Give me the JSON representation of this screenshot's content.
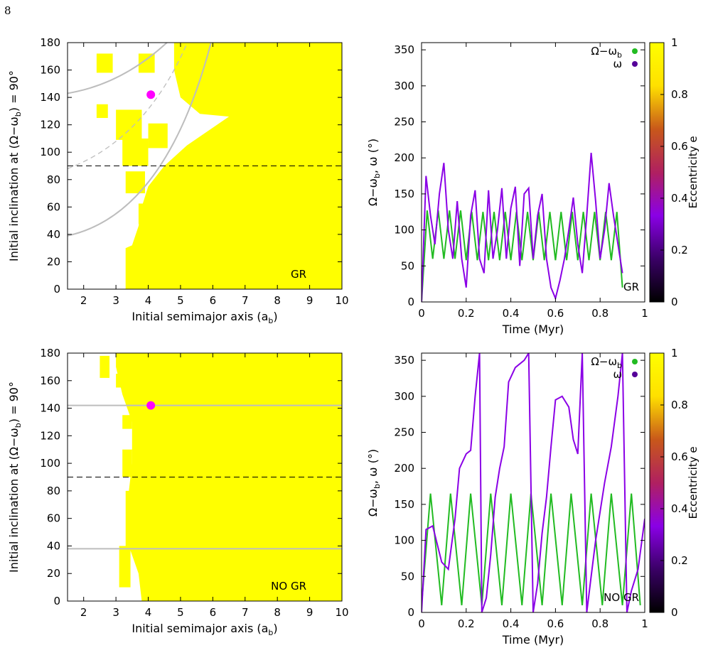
{
  "page_number": "8",
  "colors": {
    "stable_region": "#ffff00",
    "marker": "#ff00ff",
    "curve_gray": "#bdbdbd",
    "dashed_black": "#000000",
    "omega_minus_green": "#22bb22",
    "colorbar": [
      "#000000",
      "#3a0066",
      "#8a00e6",
      "#b02060",
      "#c8581a",
      "#ffe000",
      "#ffff00"
    ]
  },
  "chart_data": [
    {
      "id": "top-left",
      "type": "heatmap",
      "xlabel": "Initial semimajor axis (a",
      "xlabel_sub": "b",
      "xlabel_end": ")",
      "ylabel": "Initial inclination at (Ω−ω",
      "ylabel_sub": "b",
      "ylabel_end": ") = 90°",
      "xlim": [
        1.5,
        10
      ],
      "ylim": [
        0,
        180
      ],
      "xticks": [
        "2",
        "3",
        "4",
        "5",
        "6",
        "7",
        "8",
        "9",
        "10"
      ],
      "yticks": [
        "0",
        "20",
        "40",
        "60",
        "80",
        "100",
        "120",
        "140",
        "160",
        "180"
      ],
      "label": "GR",
      "marker": {
        "x": 4.08,
        "y": 142
      },
      "dashed_line_y": 90,
      "boundary": [
        [
          1.5,
          40
        ],
        [
          2.5,
          45
        ],
        [
          3.4,
          55
        ],
        [
          3.6,
          75
        ],
        [
          3.7,
          95
        ],
        [
          3.8,
          115
        ],
        [
          4.0,
          135
        ],
        [
          4.2,
          150
        ],
        [
          4.4,
          170
        ],
        [
          4.5,
          180
        ]
      ],
      "region": [
        [
          3.3,
          0
        ],
        [
          3.3,
          30
        ],
        [
          3.5,
          32
        ],
        [
          3.7,
          46
        ],
        [
          3.8,
          60
        ],
        [
          4.0,
          75
        ],
        [
          4.5,
          90
        ],
        [
          5.2,
          105
        ],
        [
          6.5,
          126
        ],
        [
          5.6,
          128
        ],
        [
          5.0,
          140
        ],
        [
          4.8,
          160
        ],
        [
          4.8,
          180
        ],
        [
          10,
          180
        ],
        [
          10,
          0
        ]
      ]
    },
    {
      "id": "top-right",
      "type": "line",
      "xlabel": "Time (Myr)",
      "ylabel": "Ω−ω",
      "ylabel_sub": "b",
      "ylabel_end": ", ω (°)",
      "xlim": [
        0,
        1
      ],
      "ylim": [
        0,
        360
      ],
      "xticks": [
        "0",
        "0.2",
        "0.4",
        "0.6",
        "0.8",
        "1"
      ],
      "yticks": [
        "0",
        "50",
        "100",
        "150",
        "200",
        "250",
        "300",
        "350"
      ],
      "colorbar_label": "Eccentricity e",
      "colorbar_ticks": [
        "0",
        "0.2",
        "0.4",
        "0.6",
        "0.8",
        "1"
      ],
      "label": "GR",
      "legend": [
        {
          "name": "Ω−ω",
          "sub": "b",
          "color": "#22bb22"
        },
        {
          "name": "ω",
          "sub": "",
          "color": "#550099"
        }
      ],
      "series": [
        {
          "name": "Ω−ω_b",
          "color": "#22bb22",
          "x": [
            0,
            0.025,
            0.05,
            0.075,
            0.1,
            0.125,
            0.15,
            0.175,
            0.2,
            0.225,
            0.25,
            0.275,
            0.3,
            0.325,
            0.35,
            0.375,
            0.4,
            0.425,
            0.45,
            0.475,
            0.5,
            0.525,
            0.55,
            0.575,
            0.6,
            0.625,
            0.65,
            0.675,
            0.7,
            0.725,
            0.75,
            0.775,
            0.8,
            0.825,
            0.85,
            0.875,
            0.9
          ],
          "y": [
            0,
            127,
            60,
            127,
            60,
            127,
            60,
            127,
            58,
            125,
            58,
            125,
            58,
            125,
            58,
            125,
            58,
            125,
            58,
            125,
            58,
            125,
            58,
            125,
            58,
            125,
            58,
            125,
            58,
            125,
            58,
            125,
            58,
            125,
            58,
            125,
            20
          ]
        },
        {
          "name": "ω",
          "color": "#8a00e6",
          "x": [
            0,
            0.02,
            0.04,
            0.06,
            0.08,
            0.1,
            0.12,
            0.14,
            0.16,
            0.18,
            0.2,
            0.22,
            0.24,
            0.26,
            0.28,
            0.3,
            0.32,
            0.34,
            0.36,
            0.38,
            0.4,
            0.42,
            0.44,
            0.46,
            0.48,
            0.5,
            0.52,
            0.54,
            0.56,
            0.58,
            0.6,
            0.62,
            0.64,
            0.66,
            0.68,
            0.7,
            0.72,
            0.74,
            0.76,
            0.78,
            0.8,
            0.82,
            0.84,
            0.86,
            0.88,
            0.9
          ],
          "y": [
            0,
            175,
            120,
            80,
            150,
            193,
            100,
            60,
            140,
            60,
            20,
            120,
            155,
            60,
            40,
            155,
            60,
            100,
            158,
            60,
            130,
            160,
            50,
            150,
            158,
            60,
            120,
            150,
            60,
            20,
            5,
            30,
            60,
            100,
            145,
            80,
            40,
            120,
            207,
            140,
            60,
            100,
            165,
            120,
            80,
            40
          ]
        }
      ]
    },
    {
      "id": "bottom-left",
      "type": "heatmap",
      "xlabel": "Initial semimajor axis (a",
      "xlabel_sub": "b",
      "xlabel_end": ")",
      "ylabel": "Initial inclination at (Ω−ω",
      "ylabel_sub": "b",
      "ylabel_end": ") = 90°",
      "xlim": [
        1.5,
        10
      ],
      "ylim": [
        0,
        180
      ],
      "xticks": [
        "2",
        "3",
        "4",
        "5",
        "6",
        "7",
        "8",
        "9",
        "10"
      ],
      "yticks": [
        "0",
        "20",
        "40",
        "60",
        "80",
        "100",
        "120",
        "140",
        "160",
        "180"
      ],
      "label": "NO GR",
      "marker": {
        "x": 4.08,
        "y": 142
      },
      "dashed_line_y": 90,
      "gray_lines_y": [
        38,
        142
      ],
      "region": [
        [
          3.8,
          0
        ],
        [
          3.7,
          20
        ],
        [
          3.4,
          40
        ],
        [
          3.4,
          80
        ],
        [
          3.5,
          100
        ],
        [
          3.5,
          130
        ],
        [
          3.2,
          150
        ],
        [
          3.0,
          170
        ],
        [
          3.0,
          180
        ],
        [
          10,
          180
        ],
        [
          10,
          0
        ]
      ]
    },
    {
      "id": "bottom-right",
      "type": "line",
      "xlabel": "Time (Myr)",
      "ylabel": "Ω−ω",
      "ylabel_sub": "b",
      "ylabel_end": ", ω (°)",
      "xlim": [
        0,
        1
      ],
      "ylim": [
        0,
        360
      ],
      "xticks": [
        "0",
        "0.2",
        "0.4",
        "0.6",
        "0.8",
        "1"
      ],
      "yticks": [
        "0",
        "50",
        "100",
        "150",
        "200",
        "250",
        "300",
        "350"
      ],
      "colorbar_label": "Eccentricity e",
      "colorbar_ticks": [
        "0",
        "0.2",
        "0.4",
        "0.6",
        "0.8",
        "1"
      ],
      "label": "NO GR",
      "legend": [
        {
          "name": "Ω−ω",
          "sub": "b",
          "color": "#22bb22"
        },
        {
          "name": "ω",
          "sub": "",
          "color": "#550099"
        }
      ],
      "series": [
        {
          "name": "Ω−ω_b",
          "color": "#22bb22",
          "x": [
            0,
            0.04,
            0.09,
            0.13,
            0.18,
            0.22,
            0.27,
            0.31,
            0.36,
            0.4,
            0.45,
            0.49,
            0.54,
            0.58,
            0.63,
            0.67,
            0.72,
            0.76,
            0.81,
            0.85,
            0.9,
            0.94,
            0.98
          ],
          "y": [
            10,
            165,
            10,
            165,
            10,
            165,
            10,
            165,
            10,
            165,
            10,
            165,
            10,
            165,
            10,
            165,
            10,
            165,
            10,
            165,
            10,
            165,
            10
          ]
        },
        {
          "name": "ω",
          "color": "#8a00e6",
          "x": [
            0,
            0.02,
            0.05,
            0.09,
            0.12,
            0.15,
            0.17,
            0.2,
            0.22,
            0.24,
            0.26,
            0.27,
            0.29,
            0.31,
            0.33,
            0.35,
            0.37,
            0.39,
            0.42,
            0.46,
            0.48,
            0.5,
            0.52,
            0.54,
            0.56,
            0.58,
            0.6,
            0.63,
            0.66,
            0.68,
            0.7,
            0.72,
            0.74,
            0.76,
            0.78,
            0.8,
            0.82,
            0.85,
            0.88,
            0.9,
            0.92,
            0.94,
            0.97,
            1.0
          ],
          "y": [
            0,
            115,
            120,
            70,
            60,
            130,
            200,
            220,
            225,
            300,
            360,
            0,
            20,
            80,
            160,
            200,
            230,
            320,
            340,
            350,
            360,
            0,
            40,
            110,
            160,
            230,
            295,
            300,
            285,
            240,
            220,
            360,
            0,
            50,
            100,
            140,
            180,
            230,
            300,
            360,
            0,
            30,
            60,
            130
          ]
        }
      ]
    }
  ]
}
